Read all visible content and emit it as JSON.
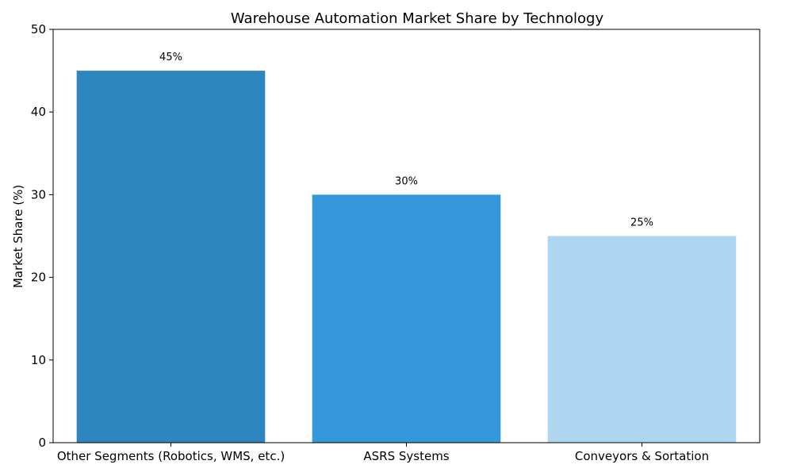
{
  "chart_data": {
    "type": "bar",
    "title": "Warehouse Automation Market Share by Technology",
    "xlabel": "",
    "ylabel": "Market Share (%)",
    "ylim": [
      0,
      50
    ],
    "yticks": [
      0,
      10,
      20,
      30,
      40,
      50
    ],
    "categories": [
      "Other Segments (Robotics, WMS, etc.)",
      "ASRS Systems",
      "Conveyors & Sortation"
    ],
    "values": [
      45,
      30,
      25
    ],
    "data_labels": [
      "45%",
      "30%",
      "25%"
    ],
    "colors": [
      "#2e86c1",
      "#3498db",
      "#aed6f1"
    ],
    "grid": false,
    "legend": "none"
  }
}
